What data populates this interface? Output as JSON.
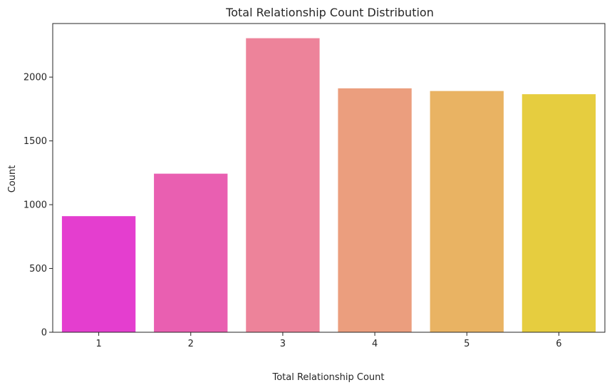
{
  "chart_data": {
    "type": "bar",
    "title": "Total Relationship Count Distribution",
    "xlabel": "Total Relationship Count",
    "ylabel": "Count",
    "categories": [
      "1",
      "2",
      "3",
      "4",
      "5",
      "6"
    ],
    "values": [
      910,
      1243,
      2305,
      1912,
      1891,
      1866
    ],
    "colors": [
      "#e43ecf",
      "#e95fb1",
      "#ed839a",
      "#eb9e7e",
      "#e9b363",
      "#e6cd3f"
    ],
    "ylim": [
      0,
      2420
    ],
    "yticks": [
      0,
      500,
      1000,
      1500,
      2000
    ],
    "grid": false,
    "legend": "none"
  }
}
